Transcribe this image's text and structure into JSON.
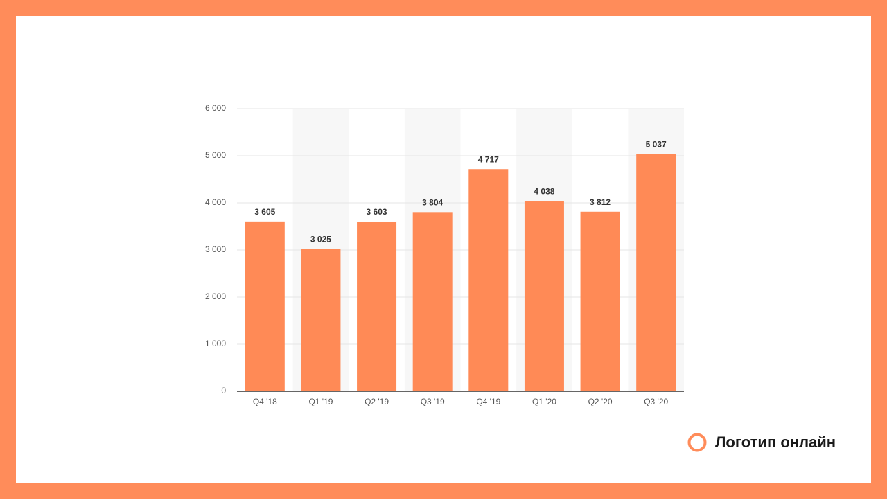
{
  "chart_data": {
    "type": "bar",
    "categories": [
      "Q4 '18",
      "Q1 '19",
      "Q2 '19",
      "Q3 '19",
      "Q4 '19",
      "Q1 '20",
      "Q2 '20",
      "Q3 '20"
    ],
    "values": [
      3605,
      3025,
      3603,
      3804,
      4717,
      4038,
      3812,
      5037
    ],
    "value_labels": [
      "3 605",
      "3 025",
      "3 603",
      "3 804",
      "4 717",
      "4 038",
      "3 812",
      "5 037"
    ],
    "color": "#ff8a56",
    "ylim": [
      0,
      6000
    ],
    "yticks": [
      0,
      {
        "value": 1000,
        "label": "1 000"
      },
      {
        "value": 2000,
        "label": "2 000"
      },
      {
        "value": 3000,
        "label": "3 000"
      },
      {
        "value": 4000,
        "label": "4 000"
      },
      {
        "value": 5000,
        "label": "5 000"
      },
      {
        "value": 6000,
        "label": "6 000"
      }
    ],
    "grid": true
  },
  "brand": "Логотип онлайн"
}
